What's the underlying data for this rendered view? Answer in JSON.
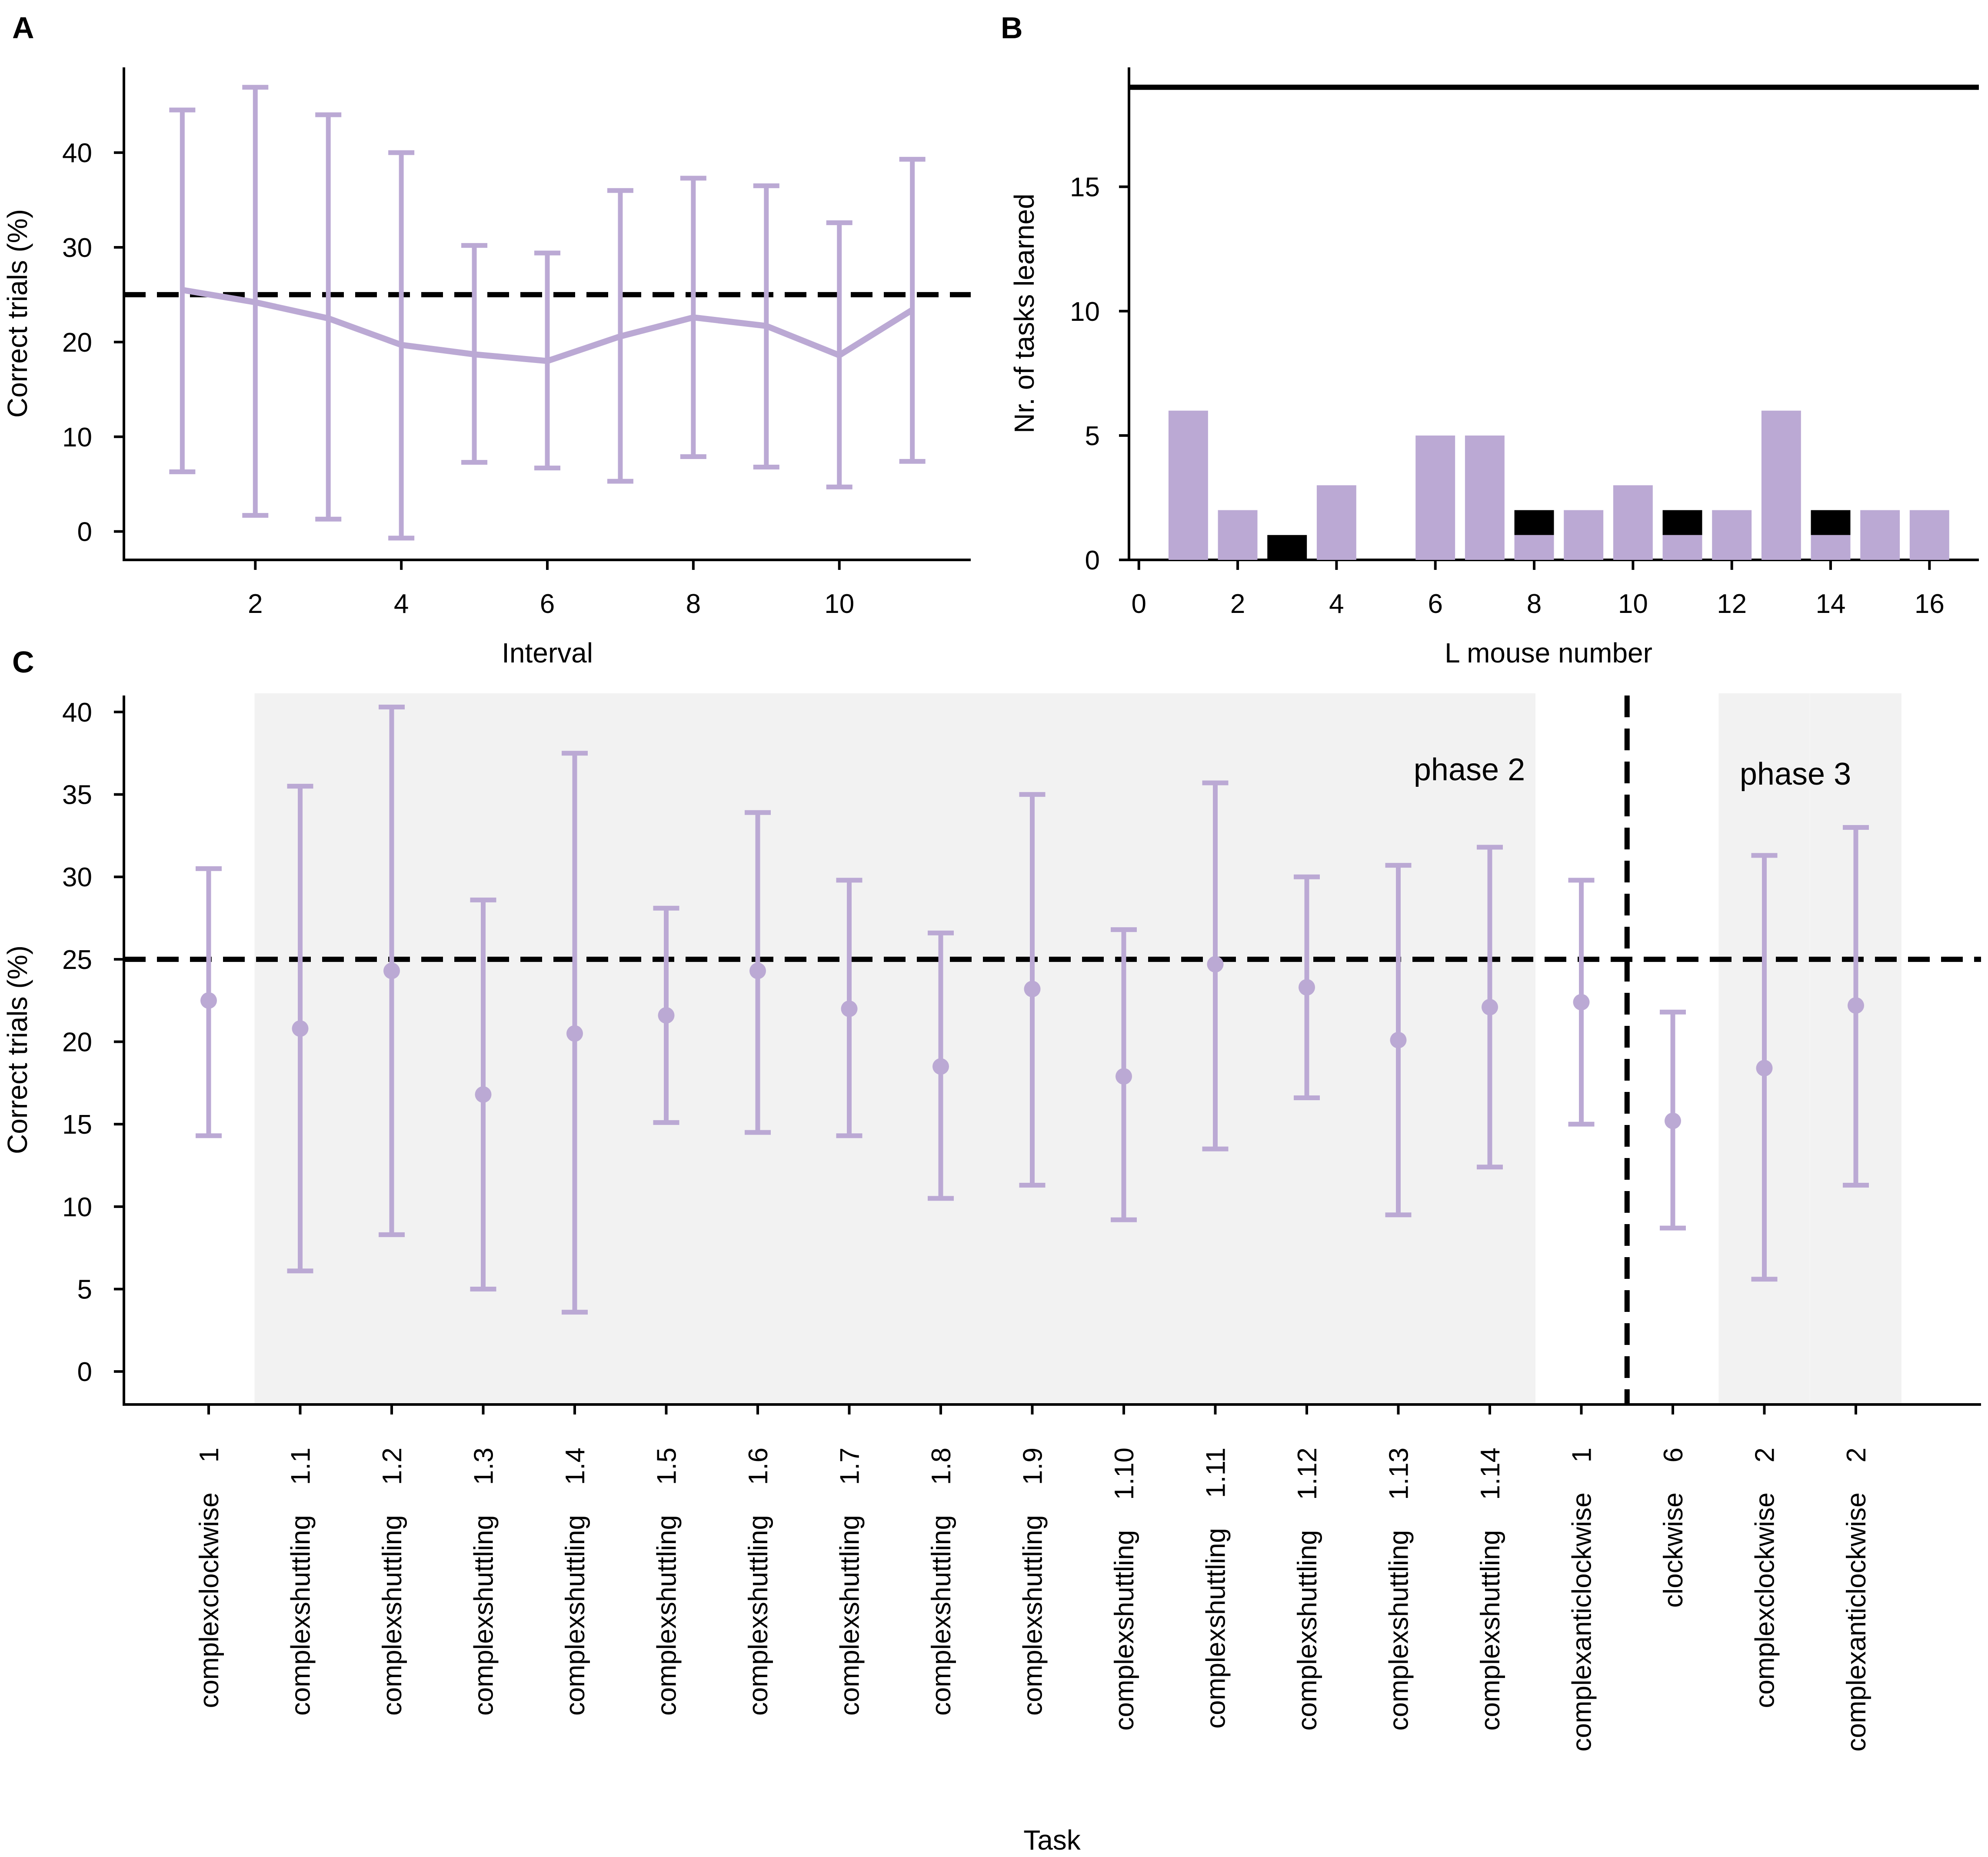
{
  "colors": {
    "series": "#bba9d4",
    "reference": "#000000",
    "shade": "#f2f2f2",
    "axis": "#000000"
  },
  "chart_data": [
    {
      "panel": "A",
      "type": "line",
      "xlabel": "Interval",
      "ylabel": "Correct trials  (%)",
      "xlim": [
        0.2,
        11.8
      ],
      "ylim": [
        -3,
        49
      ],
      "xticks": [
        2,
        4,
        6,
        8,
        10
      ],
      "yticks": [
        0,
        10,
        20,
        30,
        40
      ],
      "x": [
        1,
        2,
        3,
        4,
        5,
        6,
        7,
        8,
        9,
        10,
        11
      ],
      "y": [
        25.5,
        24.2,
        22.5,
        19.7,
        18.7,
        18.0,
        20.6,
        22.6,
        21.7,
        18.6,
        23.4
      ],
      "err_low": [
        6.3,
        1.7,
        1.3,
        -0.7,
        7.3,
        6.7,
        5.3,
        7.9,
        6.8,
        4.7,
        7.4
      ],
      "err_high": [
        44.5,
        46.9,
        44.0,
        40.0,
        30.2,
        29.4,
        36.0,
        37.3,
        36.5,
        32.6,
        39.3
      ],
      "chance_level": 25
    },
    {
      "panel": "B",
      "type": "bar",
      "xlabel": "L mouse number",
      "ylabel": "Nr. of tasks learned",
      "xlim": [
        -0.2,
        17.0
      ],
      "ylim": [
        0,
        19.8
      ],
      "xticks": [
        0,
        2,
        4,
        6,
        8,
        10,
        12,
        14,
        16
      ],
      "yticks": [
        0,
        5,
        10,
        15
      ],
      "x": [
        1,
        2,
        3,
        4,
        5,
        6,
        7,
        8,
        9,
        10,
        11,
        12,
        13,
        14,
        15,
        16
      ],
      "series": [
        {
          "name": "learned",
          "color": "#bba9d4",
          "values": [
            6,
            2,
            0,
            3,
            0,
            5,
            5,
            1,
            2,
            3,
            1,
            2,
            6,
            1,
            2,
            2
          ]
        },
        {
          "name": "stacked black",
          "color": "#000000",
          "values": [
            0,
            0,
            1,
            0,
            0,
            0,
            0,
            1,
            0,
            0,
            1,
            0,
            0,
            1,
            0,
            0
          ]
        }
      ],
      "reference_line": 19
    },
    {
      "panel": "C",
      "type": "scatter",
      "xlabel": "Task",
      "ylabel": "Correct trials  (%)",
      "ylim": [
        -2,
        41
      ],
      "yticks": [
        0,
        5,
        10,
        15,
        20,
        25,
        30,
        35,
        40
      ],
      "categories": [
        "complexclockwise    1",
        "complexshuttling    1.1",
        "complexshuttling    1.2",
        "complexshuttling    1.3",
        "complexshuttling    1.4",
        "complexshuttling    1.5",
        "complexshuttling    1.6",
        "complexshuttling    1.7",
        "complexshuttling    1.8",
        "complexshuttling    1.9",
        "complexshuttling    1.10",
        "complexshuttling    1.11",
        "complexshuttling    1.12",
        "complexshuttling    1.13",
        "complexshuttling    1.14",
        "complexanticlockwise    1",
        "clockwise    6",
        "complexclockwise    2",
        "complexanticlockwise    2"
      ],
      "values": [
        22.5,
        20.8,
        24.3,
        16.8,
        20.5,
        21.6,
        24.3,
        22.0,
        18.5,
        23.2,
        17.9,
        24.7,
        23.3,
        20.1,
        22.1,
        22.4,
        15.2,
        18.4,
        22.2
      ],
      "err_low": [
        14.3,
        6.1,
        8.3,
        5.0,
        3.6,
        15.1,
        14.5,
        14.3,
        10.5,
        11.3,
        9.2,
        13.5,
        16.6,
        9.5,
        12.4,
        15.0,
        8.7,
        5.6,
        11.3
      ],
      "err_high": [
        30.5,
        35.5,
        40.3,
        28.6,
        37.5,
        28.1,
        33.9,
        29.8,
        26.6,
        35.0,
        26.8,
        35.7,
        30.0,
        30.7,
        31.8,
        29.8,
        21.8,
        31.3,
        33.0
      ],
      "chance_level": 25,
      "shaded_ranges": [
        [
          1,
          14
        ],
        [
          17,
          17
        ],
        [
          18,
          18
        ]
      ],
      "phase_divider_after_index": 15,
      "annotations": [
        "phase 2",
        "phase 3"
      ]
    }
  ]
}
